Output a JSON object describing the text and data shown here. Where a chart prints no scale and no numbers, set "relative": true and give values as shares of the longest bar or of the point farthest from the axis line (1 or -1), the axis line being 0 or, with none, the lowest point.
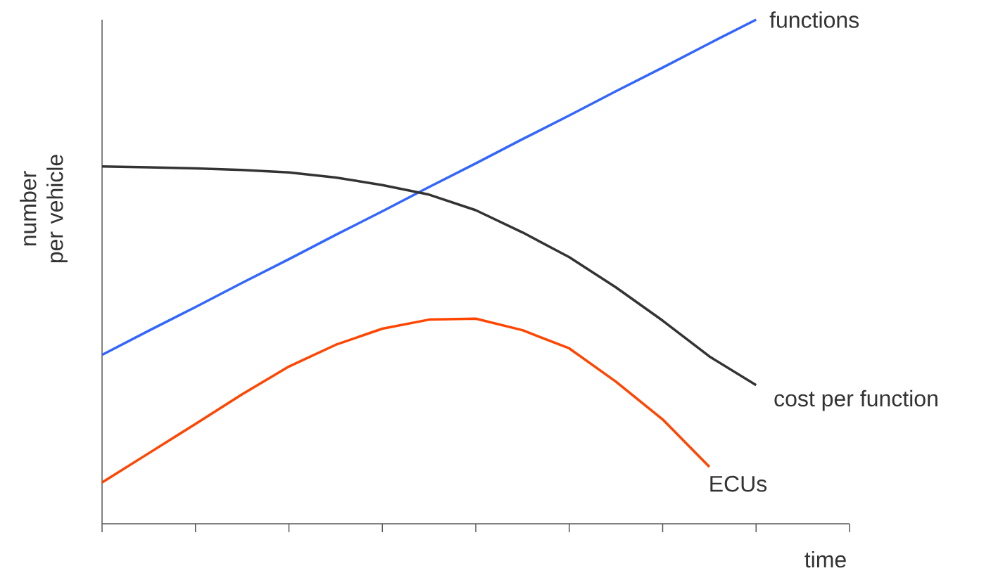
{
  "chart_data": {
    "type": "line",
    "relative": true,
    "xlabel": "time",
    "ylabel": "number per vehicle",
    "categories": [
      null,
      null,
      null,
      null,
      null,
      null,
      null,
      null,
      null,
      null,
      null,
      null,
      null,
      null,
      null,
      null,
      null
    ],
    "grid": false,
    "marker": "none",
    "line_style": "solid",
    "series": [
      {
        "name": "functions",
        "color": "#3366ff",
        "values": [
          0.335,
          0.383,
          0.43,
          0.478,
          0.525,
          0.573,
          0.62,
          0.668,
          0.715,
          0.763,
          0.81,
          0.858,
          0.905,
          0.953,
          1,
          null,
          null
        ]
      },
      {
        "name": "cost per function",
        "color": "#333333",
        "values": [
          0.709,
          0.707,
          0.705,
          0.702,
          0.697,
          0.687,
          0.672,
          0.653,
          0.622,
          0.578,
          0.529,
          0.469,
          0.403,
          0.332,
          0.275,
          null,
          null
        ]
      },
      {
        "name": "ECUs",
        "color": "#ff4500",
        "values": [
          0.082,
          0.14,
          0.198,
          0.257,
          0.312,
          0.355,
          0.387,
          0.405,
          0.407,
          0.384,
          0.348,
          0.282,
          0.207,
          0.113,
          null,
          null,
          null
        ]
      }
    ]
  }
}
